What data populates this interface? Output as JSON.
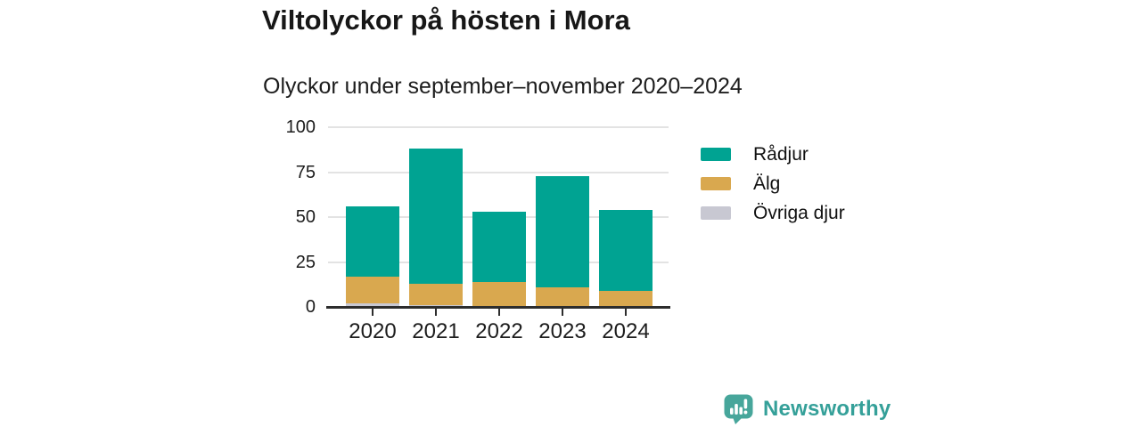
{
  "header": {
    "title": "Viltolyckor på hösten i Mora",
    "subtitle": "Olyckor under september–november 2020–2024"
  },
  "chart_data": {
    "type": "bar",
    "stacked": true,
    "title": "Viltolyckor på hösten i Mora",
    "subtitle": "Olyckor under september–november 2020–2024",
    "categories": [
      "2020",
      "2021",
      "2022",
      "2023",
      "2024"
    ],
    "series": [
      {
        "name": "Rådjur",
        "color": "#00a392",
        "values": [
          39,
          75,
          39,
          62,
          45
        ]
      },
      {
        "name": "Älg",
        "color": "#d9a84f",
        "values": [
          15,
          12,
          14,
          11,
          9
        ]
      },
      {
        "name": "Övriga djur",
        "color": "#c8c8d2",
        "values": [
          2,
          1,
          0,
          0,
          0
        ]
      }
    ],
    "stack_order_bottom_to_top": [
      "Övriga djur",
      "Älg",
      "Rådjur"
    ],
    "totals": [
      56,
      88,
      53,
      73,
      54
    ],
    "xlabel": "",
    "ylabel": "",
    "ylim": [
      0,
      100
    ],
    "yticks": [
      0,
      25,
      50,
      75,
      100
    ],
    "grid": true,
    "legend_position": "right"
  },
  "branding": {
    "logo_text": "Newsworthy"
  },
  "colors": {
    "accent_teal": "#00a392",
    "accent_gold": "#d9a84f",
    "accent_gray": "#c8c8d2",
    "brand_teal": "#35a099",
    "brand_bubble": "#47a69b",
    "axis": "#2d2d2d",
    "gridline": "#e3e3e3",
    "text": "#171717"
  }
}
